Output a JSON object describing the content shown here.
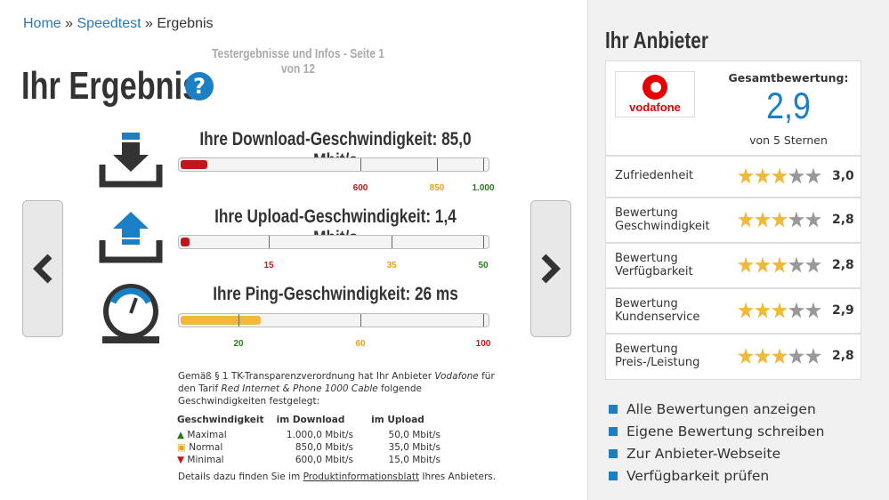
{
  "breadcrumb": {
    "items": [
      "Home",
      "Speedtest",
      "Ergebnis"
    ],
    "separator": "»"
  },
  "subtitle": "Testergebnisse und Infos - Seite 1 von 12",
  "title": "Ihr Ergebnis",
  "help_icon": "?",
  "tests": [
    {
      "heading": "Ihre Download-Geschwindigkeit: 85,0 Mbit/s",
      "markers": [
        "600",
        "850",
        "1.000"
      ]
    },
    {
      "heading": "Ihre Upload-Geschwindigkeit: 1,4 Mbit/s",
      "markers": [
        "15",
        "35",
        "50"
      ]
    },
    {
      "heading": "Ihre Ping-Geschwindigkeit: 26 ms",
      "markers": [
        "20",
        "60",
        "100"
      ]
    }
  ],
  "notice": {
    "parts": [
      "Gemäß § 1 TK-Transparenzverordnung hat Ihr Anbieter ",
      "Vodafone",
      " für den Tarif ",
      "Red Internet & Phone 1000 Cable",
      " folgende Geschwindigkeiten festgelegt:"
    ]
  },
  "table": {
    "headers": [
      "Geschwindigkeit",
      "im Download",
      "im Upload"
    ],
    "rows": [
      [
        "Maximal",
        "1.000,0 Mbit/s",
        "50,0 Mbit/s"
      ],
      [
        "Normal",
        "850,0 Mbit/s",
        "35,0 Mbit/s"
      ],
      [
        "Minimal",
        "600,0 Mbit/s",
        "15,0 Mbit/s"
      ]
    ]
  },
  "details": {
    "parts": [
      "Details dazu finden Sie im ",
      "Produktinformationsblatt",
      " Ihres Anbieters."
    ]
  },
  "sidebar": {
    "title": "Ihr Anbieter",
    "logo": "vodafone",
    "overall_label": "Gesamtbewertung:",
    "overall_score": "2,9",
    "overall_scale": "von 5 Sternen",
    "ratings": [
      {
        "label": [
          "Zufriedenheit"
        ],
        "score": "3,0"
      },
      {
        "label": [
          "Bewertung",
          "Geschwindigkeit"
        ],
        "score": "2,8"
      },
      {
        "label": [
          "Bewertung",
          "Verfügbarkeit"
        ],
        "score": "2,8"
      },
      {
        "label": [
          "Bewertung",
          "Kundenservice"
        ],
        "score": "2,9"
      },
      {
        "label": [
          "Bewertung",
          "Preis-/Leistung"
        ],
        "score": "2,8"
      }
    ],
    "links": [
      "Alle Bewertungen anzeigen",
      "Eigene Bewertung schreiben",
      "Zur Anbieter-Webseite",
      "Verfügbarkeit prüfen"
    ]
  }
}
